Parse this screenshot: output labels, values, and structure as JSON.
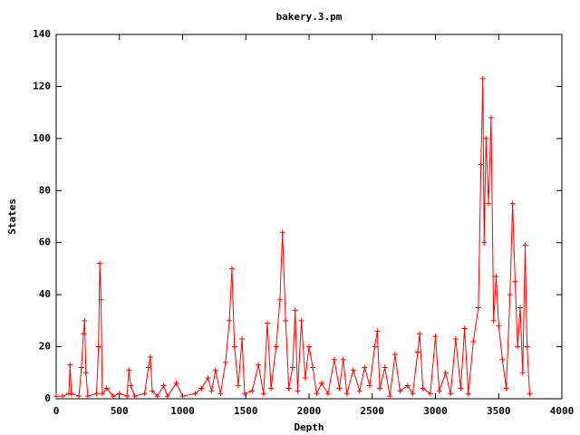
{
  "chart_data": {
    "type": "linepoints",
    "title": "bakery.3.pm",
    "xlabel": "Depth",
    "ylabel": "States",
    "color": "#ff0000",
    "xlim": [
      0,
      4000
    ],
    "xticks": [
      0,
      500,
      1000,
      1500,
      2000,
      2500,
      3000,
      3500,
      4000
    ],
    "ylim": [
      0,
      140
    ],
    "yticks": [
      0,
      20,
      40,
      60,
      80,
      100,
      120,
      140
    ],
    "x": [
      0,
      50,
      100,
      110,
      120,
      180,
      200,
      215,
      225,
      235,
      250,
      320,
      335,
      345,
      355,
      365,
      400,
      450,
      500,
      560,
      575,
      590,
      620,
      700,
      730,
      745,
      760,
      800,
      850,
      880,
      950,
      1000,
      1100,
      1150,
      1200,
      1230,
      1260,
      1300,
      1340,
      1370,
      1390,
      1410,
      1440,
      1470,
      1490,
      1550,
      1600,
      1640,
      1670,
      1700,
      1740,
      1770,
      1790,
      1815,
      1840,
      1870,
      1890,
      1910,
      1940,
      1970,
      2000,
      2030,
      2060,
      2100,
      2150,
      2200,
      2240,
      2270,
      2300,
      2350,
      2400,
      2440,
      2480,
      2520,
      2540,
      2560,
      2600,
      2640,
      2680,
      2720,
      2780,
      2820,
      2860,
      2875,
      2900,
      2960,
      3000,
      3030,
      3080,
      3120,
      3160,
      3200,
      3230,
      3260,
      3300,
      3340,
      3360,
      3375,
      3385,
      3400,
      3420,
      3440,
      3460,
      3480,
      3500,
      3530,
      3560,
      3590,
      3610,
      3630,
      3650,
      3670,
      3690,
      3710,
      3725,
      3745
    ],
    "values": [
      1,
      1,
      2,
      13,
      2,
      1,
      12,
      25,
      30,
      10,
      1,
      2,
      20,
      52,
      38,
      2,
      4,
      1,
      2,
      1,
      11,
      5,
      1,
      2,
      12,
      16,
      3,
      1,
      5,
      1,
      6,
      1,
      2,
      4,
      8,
      3,
      11,
      2,
      14,
      30,
      50,
      20,
      5,
      23,
      2,
      3,
      13,
      2,
      29,
      4,
      20,
      38,
      64,
      30,
      4,
      12,
      34,
      3,
      30,
      8,
      20,
      12,
      2,
      6,
      2,
      15,
      4,
      15,
      2,
      11,
      3,
      12,
      5,
      20,
      26,
      4,
      12,
      1,
      17,
      3,
      5,
      2,
      18,
      25,
      4,
      2,
      24,
      3,
      10,
      2,
      23,
      4,
      27,
      2,
      22,
      35,
      90,
      123,
      60,
      100,
      75,
      108,
      30,
      47,
      28,
      15,
      4,
      40,
      75,
      45,
      20,
      35,
      10,
      59,
      20,
      2
    ]
  }
}
